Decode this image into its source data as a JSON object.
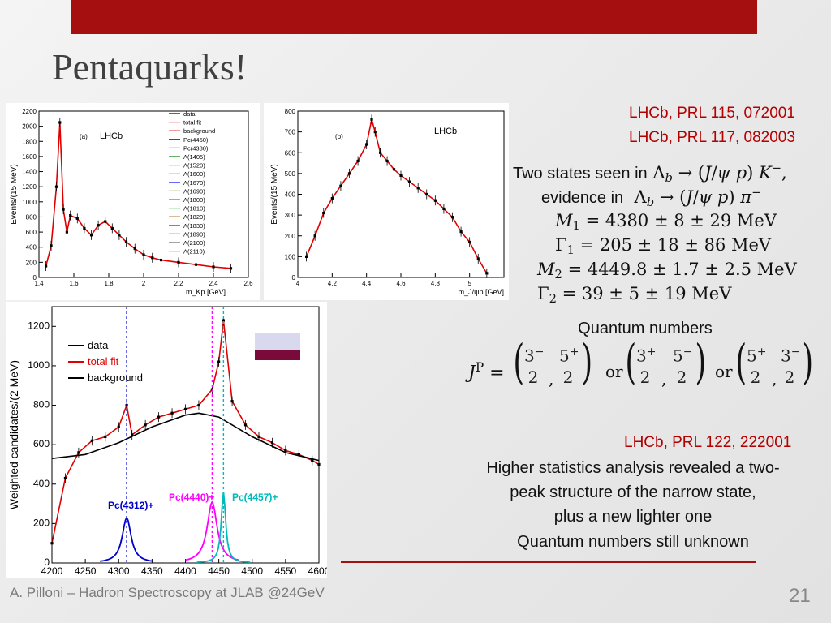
{
  "slide": {
    "title": "Pentaquarks!",
    "footer": "A. Pilloni – Hadron Spectroscopy at JLAB @24GeV",
    "page_number": "21",
    "accent_color": "#a50f10"
  },
  "refs": {
    "ref1": "LHCb, PRL 115, 072001",
    "ref2": "LHCb, PRL 117, 082003",
    "ref3": "LHCb, PRL 122, 222001"
  },
  "text": {
    "states_seen_prefix": "Two states seen in",
    "evidence_prefix": "evidence in",
    "m1": "= 4380 ± 8 ± 29 MeV",
    "g1": "= 205 ± 18 ± 86 MeV",
    "m2": "= 4449.8 ± 1.7 ± 2.5 MeV",
    "g2": "= 39 ± 5 ± 19 MeV",
    "qn_title": "Quantum numbers",
    "or": "or",
    "higher_line1": "Higher statistics analysis revealed a two-",
    "higher_line2": "peak structure of the narrow state,",
    "higher_line3": "plus a new lighter one",
    "higher_line4": "Quantum numbers still unknown"
  },
  "chart_data": [
    {
      "type": "line",
      "panel_label": "(a)",
      "experiment": "LHCb",
      "ylabel": "Events/(15 MeV)",
      "xlabel": "m_Kp [GeV]",
      "xlim": [
        1.4,
        2.6
      ],
      "ylim": [
        0,
        2200
      ],
      "x_ticks": [
        "1.4",
        "1.6",
        "1.8",
        "2",
        "2.2",
        "2.4",
        "2.6"
      ],
      "y_ticks": [
        "0",
        "200",
        "400",
        "600",
        "800",
        "1000",
        "1200",
        "1400",
        "1600",
        "1800",
        "2000",
        "2200"
      ],
      "legend": [
        "data",
        "total fit",
        "background",
        "Pc(4450)",
        "Pc(4380)",
        "Λ(1405)",
        "Λ(1520)",
        "Λ(1600)",
        "Λ(1670)",
        "Λ(1690)",
        "Λ(1800)",
        "Λ(1810)",
        "Λ(1820)",
        "Λ(1830)",
        "Λ(1890)",
        "Λ(2100)",
        "Λ(2110)"
      ],
      "series": [
        {
          "name": "data",
          "x": [
            1.44,
            1.47,
            1.5,
            1.52,
            1.54,
            1.56,
            1.58,
            1.62,
            1.66,
            1.7,
            1.74,
            1.78,
            1.82,
            1.86,
            1.9,
            1.95,
            2.0,
            2.05,
            2.1,
            2.2,
            2.3,
            2.4,
            2.5
          ],
          "y": [
            150,
            420,
            1200,
            2050,
            900,
            600,
            820,
            780,
            650,
            560,
            690,
            740,
            650,
            560,
            470,
            380,
            300,
            260,
            230,
            200,
            170,
            140,
            120
          ]
        }
      ]
    },
    {
      "type": "line",
      "panel_label": "(b)",
      "experiment": "LHCb",
      "ylabel": "Events/(15 MeV)",
      "xlabel": "m_J/ψp [GeV]",
      "xlim": [
        4.0,
        5.2
      ],
      "ylim": [
        0,
        800
      ],
      "x_ticks": [
        "4",
        "4.2",
        "4.4",
        "4.6",
        "4.8",
        "5"
      ],
      "y_ticks": [
        "0",
        "100",
        "200",
        "300",
        "400",
        "500",
        "600",
        "700",
        "800"
      ],
      "series": [
        {
          "name": "data",
          "x": [
            4.05,
            4.1,
            4.15,
            4.2,
            4.25,
            4.3,
            4.35,
            4.4,
            4.43,
            4.45,
            4.48,
            4.52,
            4.56,
            4.6,
            4.65,
            4.7,
            4.75,
            4.8,
            4.85,
            4.9,
            4.95,
            5.0,
            5.05,
            5.1
          ],
          "y": [
            100,
            200,
            310,
            380,
            440,
            500,
            560,
            640,
            760,
            700,
            600,
            560,
            520,
            490,
            460,
            430,
            400,
            370,
            330,
            290,
            220,
            170,
            90,
            20
          ]
        }
      ]
    },
    {
      "type": "line",
      "experiment": "LHCb",
      "ylabel": "Weighted candidates/(2 MeV)",
      "xlim": [
        4200,
        4600
      ],
      "ylim": [
        0,
        1300
      ],
      "x_ticks": [
        "4200",
        "4250",
        "4300",
        "4350",
        "4400",
        "4450",
        "4500",
        "4550",
        "4600"
      ],
      "y_ticks": [
        "0",
        "200",
        "400",
        "600",
        "800",
        "1000",
        "1200"
      ],
      "legend": [
        "data",
        "total fit",
        "background"
      ],
      "peak_labels": [
        "Pc(4312)+",
        "Pc(4440)+",
        "Pc(4457)+"
      ],
      "series": [
        {
          "name": "data",
          "x": [
            4200,
            4220,
            4240,
            4260,
            4280,
            4300,
            4312,
            4320,
            4340,
            4360,
            4380,
            4400,
            4420,
            4440,
            4450,
            4457,
            4470,
            4490,
            4510,
            4530,
            4550,
            4570,
            4590,
            4600
          ],
          "y": [
            100,
            430,
            560,
            620,
            640,
            690,
            800,
            650,
            700,
            740,
            760,
            780,
            800,
            880,
            1020,
            1230,
            820,
            700,
            640,
            610,
            570,
            550,
            520,
            500
          ]
        },
        {
          "name": "background",
          "x": [
            4200,
            4250,
            4300,
            4350,
            4400,
            4420,
            4450,
            4500,
            4550,
            4600
          ],
          "y": [
            530,
            550,
            610,
            690,
            750,
            760,
            740,
            640,
            560,
            520
          ]
        }
      ]
    }
  ]
}
